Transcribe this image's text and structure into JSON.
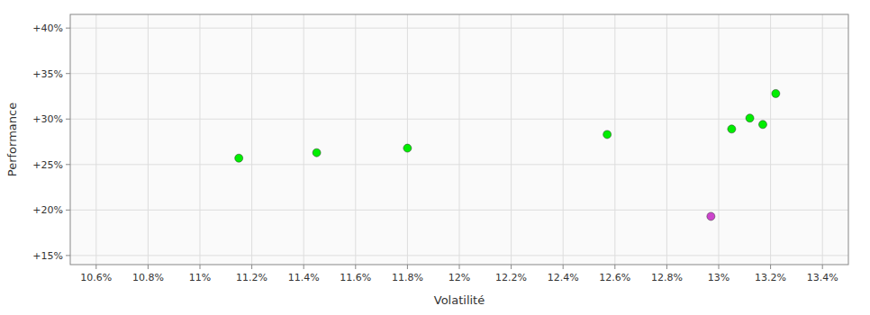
{
  "chart_data": {
    "type": "scatter",
    "xlabel": "Volatilité",
    "ylabel": "Performance",
    "x": [
      11.15,
      11.45,
      11.8,
      12.57,
      12.97,
      13.05,
      13.12,
      13.17,
      13.22
    ],
    "values": [
      25.7,
      26.3,
      26.8,
      28.3,
      19.3,
      28.9,
      30.1,
      29.4,
      32.8
    ],
    "colors": [
      "#00ee00",
      "#00ee00",
      "#00ee00",
      "#00ee00",
      "#cc44cc",
      "#00ee00",
      "#00ee00",
      "#00ee00",
      "#00ee00"
    ],
    "xlim": [
      10.5,
      13.5
    ],
    "ylim": [
      14.0,
      41.5
    ],
    "xticks": [
      {
        "value": 10.6,
        "label": "10.6%"
      },
      {
        "value": 10.8,
        "label": "10.8%"
      },
      {
        "value": 11.0,
        "label": "11%"
      },
      {
        "value": 11.2,
        "label": "11.2%"
      },
      {
        "value": 11.4,
        "label": "11.4%"
      },
      {
        "value": 11.6,
        "label": "11.6%"
      },
      {
        "value": 11.8,
        "label": "11.8%"
      },
      {
        "value": 12.0,
        "label": "12%"
      },
      {
        "value": 12.2,
        "label": "12.2%"
      },
      {
        "value": 12.4,
        "label": "12.4%"
      },
      {
        "value": 12.6,
        "label": "12.6%"
      },
      {
        "value": 12.8,
        "label": "12.8%"
      },
      {
        "value": 13.0,
        "label": "13%"
      },
      {
        "value": 13.2,
        "label": "13.2%"
      },
      {
        "value": 13.4,
        "label": "13.4%"
      }
    ],
    "yticks": [
      {
        "value": 15,
        "label": "+15%"
      },
      {
        "value": 20,
        "label": "+20%"
      },
      {
        "value": 25,
        "label": "+25%"
      },
      {
        "value": 30,
        "label": "+30%"
      },
      {
        "value": 35,
        "label": "+35%"
      },
      {
        "value": 40,
        "label": "+40%"
      }
    ],
    "grid": true
  }
}
